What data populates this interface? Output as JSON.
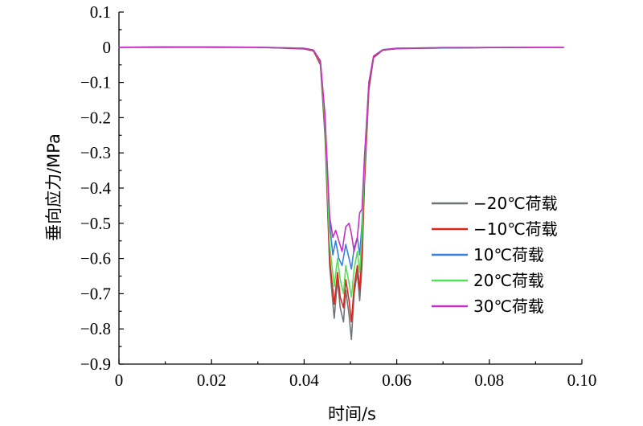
{
  "chart_data": {
    "type": "line",
    "xlabel": "时间/s",
    "ylabel": "垂向应力/MPa",
    "xlim": [
      0,
      0.1
    ],
    "ylim": [
      -0.9,
      0.1
    ],
    "x_ticks": [
      "0",
      "0.02",
      "0.04",
      "0.06",
      "0.08",
      "0.10"
    ],
    "y_ticks": [
      "0.1",
      "0",
      "−0.1",
      "−0.2",
      "−0.3",
      "−0.4",
      "−0.5",
      "−0.6",
      "−0.7",
      "−0.8",
      "−0.9"
    ],
    "legend_position": "right",
    "series": [
      {
        "name": "−20℃荷载",
        "color": "#6e7378",
        "points": [
          [
            0,
            0
          ],
          [
            0.01,
            0.001
          ],
          [
            0.02,
            0.001
          ],
          [
            0.03,
            0.0
          ],
          [
            0.04,
            -0.005
          ],
          [
            0.042,
            -0.01
          ],
          [
            0.0435,
            -0.05
          ],
          [
            0.0445,
            -0.25
          ],
          [
            0.0455,
            -0.62
          ],
          [
            0.0465,
            -0.77
          ],
          [
            0.0472,
            -0.66
          ],
          [
            0.0478,
            -0.74
          ],
          [
            0.0485,
            -0.78
          ],
          [
            0.049,
            -0.69
          ],
          [
            0.0497,
            -0.76
          ],
          [
            0.0502,
            -0.83
          ],
          [
            0.0508,
            -0.7
          ],
          [
            0.0515,
            -0.64
          ],
          [
            0.052,
            -0.72
          ],
          [
            0.0525,
            -0.62
          ],
          [
            0.053,
            -0.4
          ],
          [
            0.054,
            -0.12
          ],
          [
            0.055,
            -0.03
          ],
          [
            0.057,
            -0.008
          ],
          [
            0.06,
            -0.004
          ],
          [
            0.07,
            -0.002
          ],
          [
            0.08,
            -0.001
          ],
          [
            0.09,
            0
          ],
          [
            0.096,
            0
          ]
        ]
      },
      {
        "name": "−10℃荷载",
        "color": "#e2231a",
        "points": [
          [
            0,
            0
          ],
          [
            0.01,
            0.001
          ],
          [
            0.02,
            0.0
          ],
          [
            0.03,
            0.0
          ],
          [
            0.04,
            -0.004
          ],
          [
            0.042,
            -0.01
          ],
          [
            0.0435,
            -0.045
          ],
          [
            0.0445,
            -0.22
          ],
          [
            0.0455,
            -0.6
          ],
          [
            0.0465,
            -0.73
          ],
          [
            0.0472,
            -0.64
          ],
          [
            0.0478,
            -0.71
          ],
          [
            0.0485,
            -0.74
          ],
          [
            0.049,
            -0.66
          ],
          [
            0.0497,
            -0.72
          ],
          [
            0.0502,
            -0.78
          ],
          [
            0.0508,
            -0.68
          ],
          [
            0.0515,
            -0.62
          ],
          [
            0.052,
            -0.69
          ],
          [
            0.0525,
            -0.58
          ],
          [
            0.053,
            -0.38
          ],
          [
            0.054,
            -0.11
          ],
          [
            0.055,
            -0.028
          ],
          [
            0.057,
            -0.008
          ],
          [
            0.06,
            -0.004
          ],
          [
            0.07,
            -0.002
          ],
          [
            0.08,
            -0.001
          ],
          [
            0.09,
            0
          ],
          [
            0.096,
            0
          ]
        ]
      },
      {
        "name": "10℃荷载",
        "color": "#3a7fe0",
        "points": [
          [
            0,
            0
          ],
          [
            0.01,
            0.0
          ],
          [
            0.02,
            0.001
          ],
          [
            0.03,
            0.0
          ],
          [
            0.04,
            -0.003
          ],
          [
            0.042,
            -0.008
          ],
          [
            0.0435,
            -0.04
          ],
          [
            0.0445,
            -0.2
          ],
          [
            0.0455,
            -0.5
          ],
          [
            0.0462,
            -0.59
          ],
          [
            0.0468,
            -0.55
          ],
          [
            0.0475,
            -0.6
          ],
          [
            0.0482,
            -0.62
          ],
          [
            0.049,
            -0.56
          ],
          [
            0.0497,
            -0.6
          ],
          [
            0.0502,
            -0.63
          ],
          [
            0.0508,
            -0.57
          ],
          [
            0.0515,
            -0.54
          ],
          [
            0.052,
            -0.59
          ],
          [
            0.0525,
            -0.5
          ],
          [
            0.053,
            -0.33
          ],
          [
            0.054,
            -0.1
          ],
          [
            0.055,
            -0.025
          ],
          [
            0.057,
            -0.007
          ],
          [
            0.06,
            -0.003
          ],
          [
            0.07,
            -0.002
          ],
          [
            0.08,
            -0.001
          ],
          [
            0.09,
            0
          ],
          [
            0.096,
            0
          ]
        ]
      },
      {
        "name": "20℃荷载",
        "color": "#55e055",
        "points": [
          [
            0,
            0
          ],
          [
            0.01,
            0.0
          ],
          [
            0.02,
            0.0
          ],
          [
            0.03,
            0.0
          ],
          [
            0.04,
            -0.003
          ],
          [
            0.042,
            -0.008
          ],
          [
            0.0435,
            -0.04
          ],
          [
            0.0445,
            -0.21
          ],
          [
            0.0455,
            -0.56
          ],
          [
            0.0465,
            -0.68
          ],
          [
            0.0472,
            -0.6
          ],
          [
            0.0478,
            -0.66
          ],
          [
            0.0485,
            -0.7
          ],
          [
            0.049,
            -0.62
          ],
          [
            0.0497,
            -0.67
          ],
          [
            0.0502,
            -0.71
          ],
          [
            0.0508,
            -0.63
          ],
          [
            0.0515,
            -0.58
          ],
          [
            0.052,
            -0.64
          ],
          [
            0.0525,
            -0.53
          ],
          [
            0.053,
            -0.35
          ],
          [
            0.054,
            -0.1
          ],
          [
            0.055,
            -0.025
          ],
          [
            0.057,
            -0.007
          ],
          [
            0.06,
            -0.003
          ],
          [
            0.07,
            -0.001
          ],
          [
            0.08,
            -0.001
          ],
          [
            0.09,
            0
          ],
          [
            0.096,
            0
          ]
        ]
      },
      {
        "name": "30℃荷载",
        "color": "#c430c4",
        "points": [
          [
            0,
            0
          ],
          [
            0.01,
            0.0
          ],
          [
            0.02,
            0.0
          ],
          [
            0.03,
            0.0
          ],
          [
            0.04,
            -0.003
          ],
          [
            0.042,
            -0.008
          ],
          [
            0.0435,
            -0.038
          ],
          [
            0.0445,
            -0.19
          ],
          [
            0.0455,
            -0.48
          ],
          [
            0.0462,
            -0.54
          ],
          [
            0.0468,
            -0.52
          ],
          [
            0.0475,
            -0.55
          ],
          [
            0.0482,
            -0.58
          ],
          [
            0.049,
            -0.51
          ],
          [
            0.0497,
            -0.5
          ],
          [
            0.0502,
            -0.53
          ],
          [
            0.0508,
            -0.58
          ],
          [
            0.0515,
            -0.54
          ],
          [
            0.052,
            -0.47
          ],
          [
            0.0525,
            -0.46
          ],
          [
            0.053,
            -0.32
          ],
          [
            0.054,
            -0.1
          ],
          [
            0.055,
            -0.025
          ],
          [
            0.057,
            -0.007
          ],
          [
            0.06,
            -0.003
          ],
          [
            0.07,
            -0.001
          ],
          [
            0.08,
            -0.001
          ],
          [
            0.09,
            0
          ],
          [
            0.096,
            0
          ]
        ]
      }
    ]
  }
}
